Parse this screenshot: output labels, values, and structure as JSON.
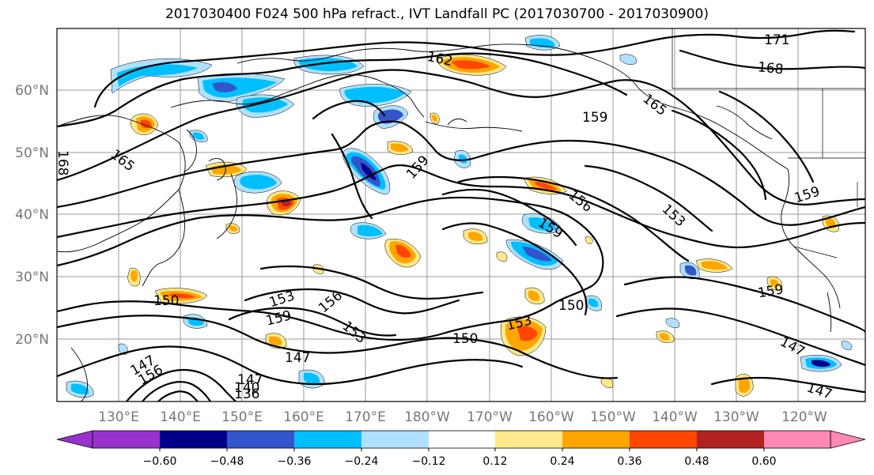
{
  "title": "2017030400 F024 500 hPa refract., IVT Landfall PC (2017030700 - 2017030900)",
  "map": {
    "lat_labels": [
      "60°N",
      "50°N",
      "40°N",
      "30°N",
      "20°N"
    ],
    "lon_labels": [
      "130°E",
      "140°E",
      "150°E",
      "160°E",
      "170°E",
      "180°W",
      "170°W",
      "160°W",
      "150°W",
      "140°W",
      "130°W",
      "120°W"
    ],
    "contour_labels": [
      "171",
      "168",
      "162",
      "165",
      "165",
      "159",
      "168",
      "159",
      "156",
      "153",
      "159",
      "159",
      "150",
      "153",
      "156",
      "159",
      "153",
      "150",
      "153",
      "150",
      "159",
      "147",
      "147",
      "147",
      "156",
      "147",
      "140",
      "136",
      "147"
    ]
  },
  "colorbar": {
    "tick_labels": [
      "−0.60",
      "−0.48",
      "−0.36",
      "−0.24",
      "−0.12",
      "0.12",
      "0.24",
      "0.36",
      "0.48",
      "0.60"
    ],
    "colors": [
      "#9932cc",
      "#00008b",
      "#3355cc",
      "#00bfff",
      "#b0e0ff",
      "#ffffff",
      "#ffe98a",
      "#ffa500",
      "#ff4500",
      "#b22222",
      "#ff88b4"
    ]
  },
  "fill_colors": {
    "neg_outer": "#b0e0ff",
    "neg_mid": "#00bfff",
    "neg_strong": "#3355cc",
    "neg_max": "#00008b",
    "pos_outer": "#ffe98a",
    "pos_mid": "#ffa500",
    "pos_strong": "#ff4500",
    "pos_max": "#b22222"
  }
}
